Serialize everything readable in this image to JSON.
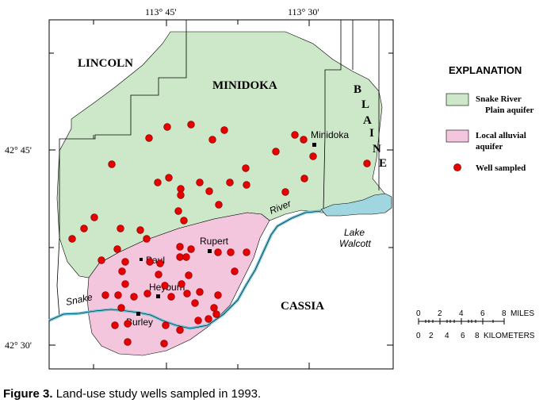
{
  "map": {
    "longitude_labels": [
      "113° 45'",
      "113° 30'"
    ],
    "latitude_labels": [
      "42° 45'",
      "42° 30'"
    ],
    "county_labels": {
      "lincoln": "LINCOLN",
      "minidoka": "MINIDOKA",
      "blaine_letters": [
        "B",
        "L",
        "A",
        "I",
        "N",
        "E"
      ],
      "cassia": "CASSIA"
    },
    "towns": [
      "Minidoka",
      "Rupert",
      "Paul",
      "Heyburn",
      "Burley"
    ],
    "water_labels": {
      "river_part1": "Snake",
      "river_part2": "River",
      "lake_line1": "Lake",
      "lake_line2": "Walcott"
    },
    "colors": {
      "snake_river_plain": "#cde8c8",
      "local_alluvial": "#f4c6de",
      "well": "#e60000",
      "water": "#9fd6e0"
    },
    "wells_note": "Land-use study wells sampled in 1993"
  },
  "legend": {
    "title": "EXPLANATION",
    "items": [
      {
        "line1": "Snake River",
        "line2": "Plain aquifer",
        "icon": "green-swatch"
      },
      {
        "line1": "Local alluvial",
        "line2": "aquifer",
        "icon": "pink-swatch"
      },
      {
        "line1": "Well sampled",
        "line2": "",
        "icon": "red-dot"
      }
    ]
  },
  "scale": {
    "miles_ticks": [
      "0",
      "2",
      "4",
      "6",
      "8"
    ],
    "miles_label": "MILES",
    "km_ticks": [
      "0",
      "2",
      "4",
      "6",
      "8"
    ],
    "km_label": "KILOMETERS"
  },
  "caption": {
    "label": "Figure 3.",
    "text": "Land-use study wells sampled in 1993."
  }
}
